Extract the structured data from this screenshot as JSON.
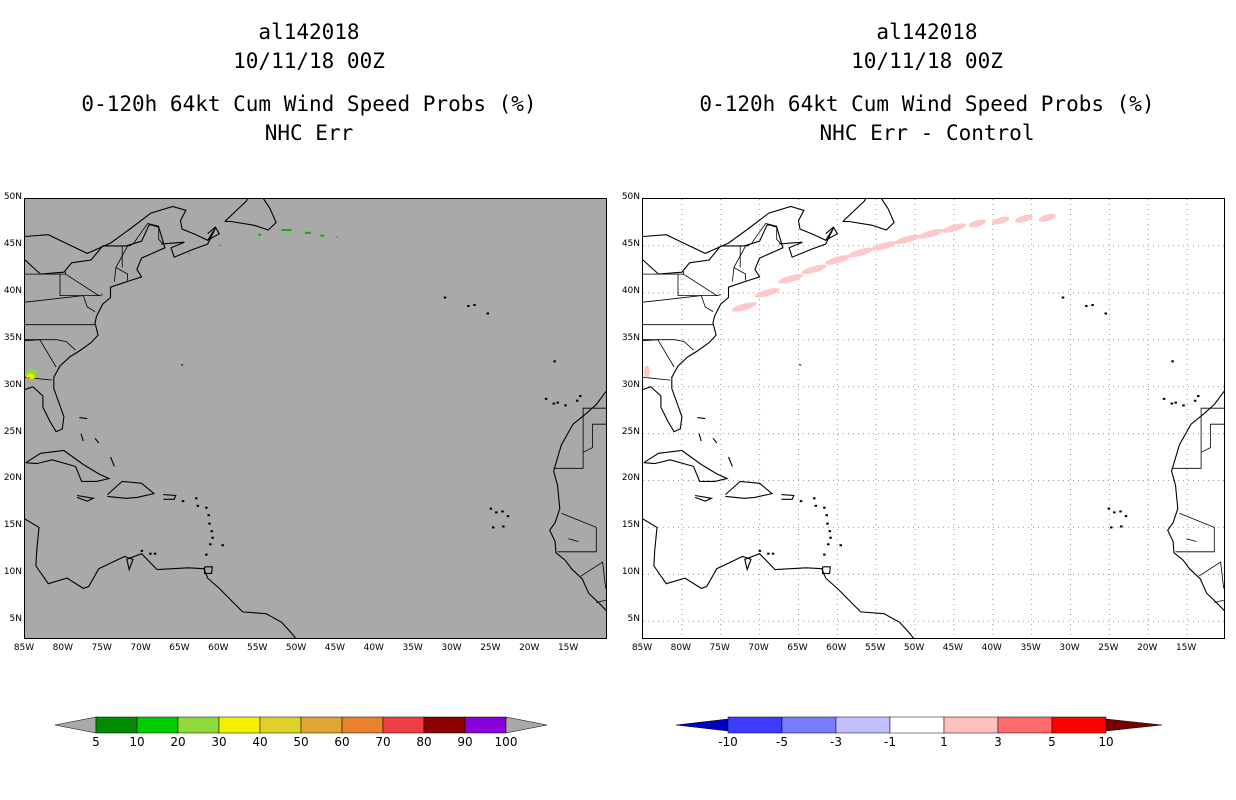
{
  "left_panel": {
    "title_lines": [
      "al142018",
      "10/11/18 00Z",
      "0-120h 64kt Cum Wind Speed Probs (%)",
      "NHC Err"
    ],
    "background": "#a9a9a9",
    "colorbar": {
      "colors": [
        "#008b00",
        "#00cd00",
        "#8fd93b",
        "#f0f000",
        "#e0d02a",
        "#dfa631",
        "#e8822c",
        "#ec3e43",
        "#8b0000",
        "#8a00d8"
      ],
      "labels": [
        "5",
        "10",
        "20",
        "30",
        "40",
        "50",
        "60",
        "70",
        "80",
        "90",
        "100"
      ],
      "arrow_color": "#a9a9a9"
    }
  },
  "right_panel": {
    "title_lines": [
      "al142018",
      "10/11/18 00Z",
      "0-120h 64kt Cum Wind Speed Probs (%)",
      "NHC Err - Control"
    ],
    "background": "#ffffff",
    "colorbar": {
      "colors": [
        "#0000c0",
        "#3c3cff",
        "#7a7aff",
        "#c0c0ff",
        "#ffffff",
        "#ffc0c0",
        "#ff6c6c",
        "#ff0000",
        "#7a0000"
      ],
      "labels": [
        "-10",
        "-5",
        "-3",
        "-1",
        "1",
        "3",
        "5",
        "10"
      ],
      "left_arrow": "#00007a",
      "right_arrow": "#7a0000"
    }
  },
  "map_axes": {
    "lat_labels": [
      "50N",
      "45N",
      "40N",
      "35N",
      "30N",
      "25N",
      "20N",
      "15N",
      "10N",
      "5N"
    ],
    "lon_labels": [
      "85W",
      "80W",
      "75W",
      "70W",
      "65W",
      "60W",
      "55W",
      "50W",
      "45W",
      "40W",
      "35W",
      "30W",
      "25W",
      "20W",
      "15W"
    ],
    "lat_range": [
      3,
      50
    ],
    "lon_range": [
      -85,
      -10
    ]
  },
  "left_features": {
    "green_patch_color": "#00b800",
    "hotspot_colors": [
      "#8fd93b",
      "#f0f000",
      "#e8822c"
    ]
  },
  "right_features": {
    "difference_patch_color": "#ffc8c8"
  }
}
